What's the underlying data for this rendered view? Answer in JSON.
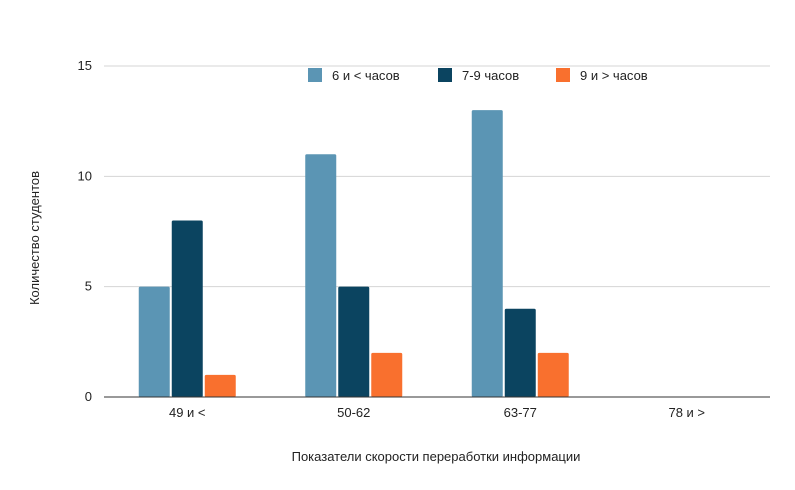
{
  "chart_data": {
    "type": "bar",
    "title": "",
    "xlabel": "Показатели скорости переработки информации",
    "ylabel": "Количество студентов",
    "categories": [
      "49 и <",
      "50-62",
      "63-77",
      "78 и >"
    ],
    "series": [
      {
        "name": "6 и < часов",
        "values": [
          5,
          11,
          13,
          0
        ],
        "color": "#5b95b4"
      },
      {
        "name": "7-9 часов",
        "values": [
          8,
          5,
          4,
          0
        ],
        "color": "#0b4460"
      },
      {
        "name": "9 и > часов",
        "values": [
          1,
          2,
          2,
          0
        ],
        "color": "#f9702e"
      }
    ],
    "ylim": [
      0,
      15
    ],
    "yticks": [
      "0",
      "5",
      "10",
      "15"
    ],
    "grid": true,
    "legend_position": "top-right"
  }
}
